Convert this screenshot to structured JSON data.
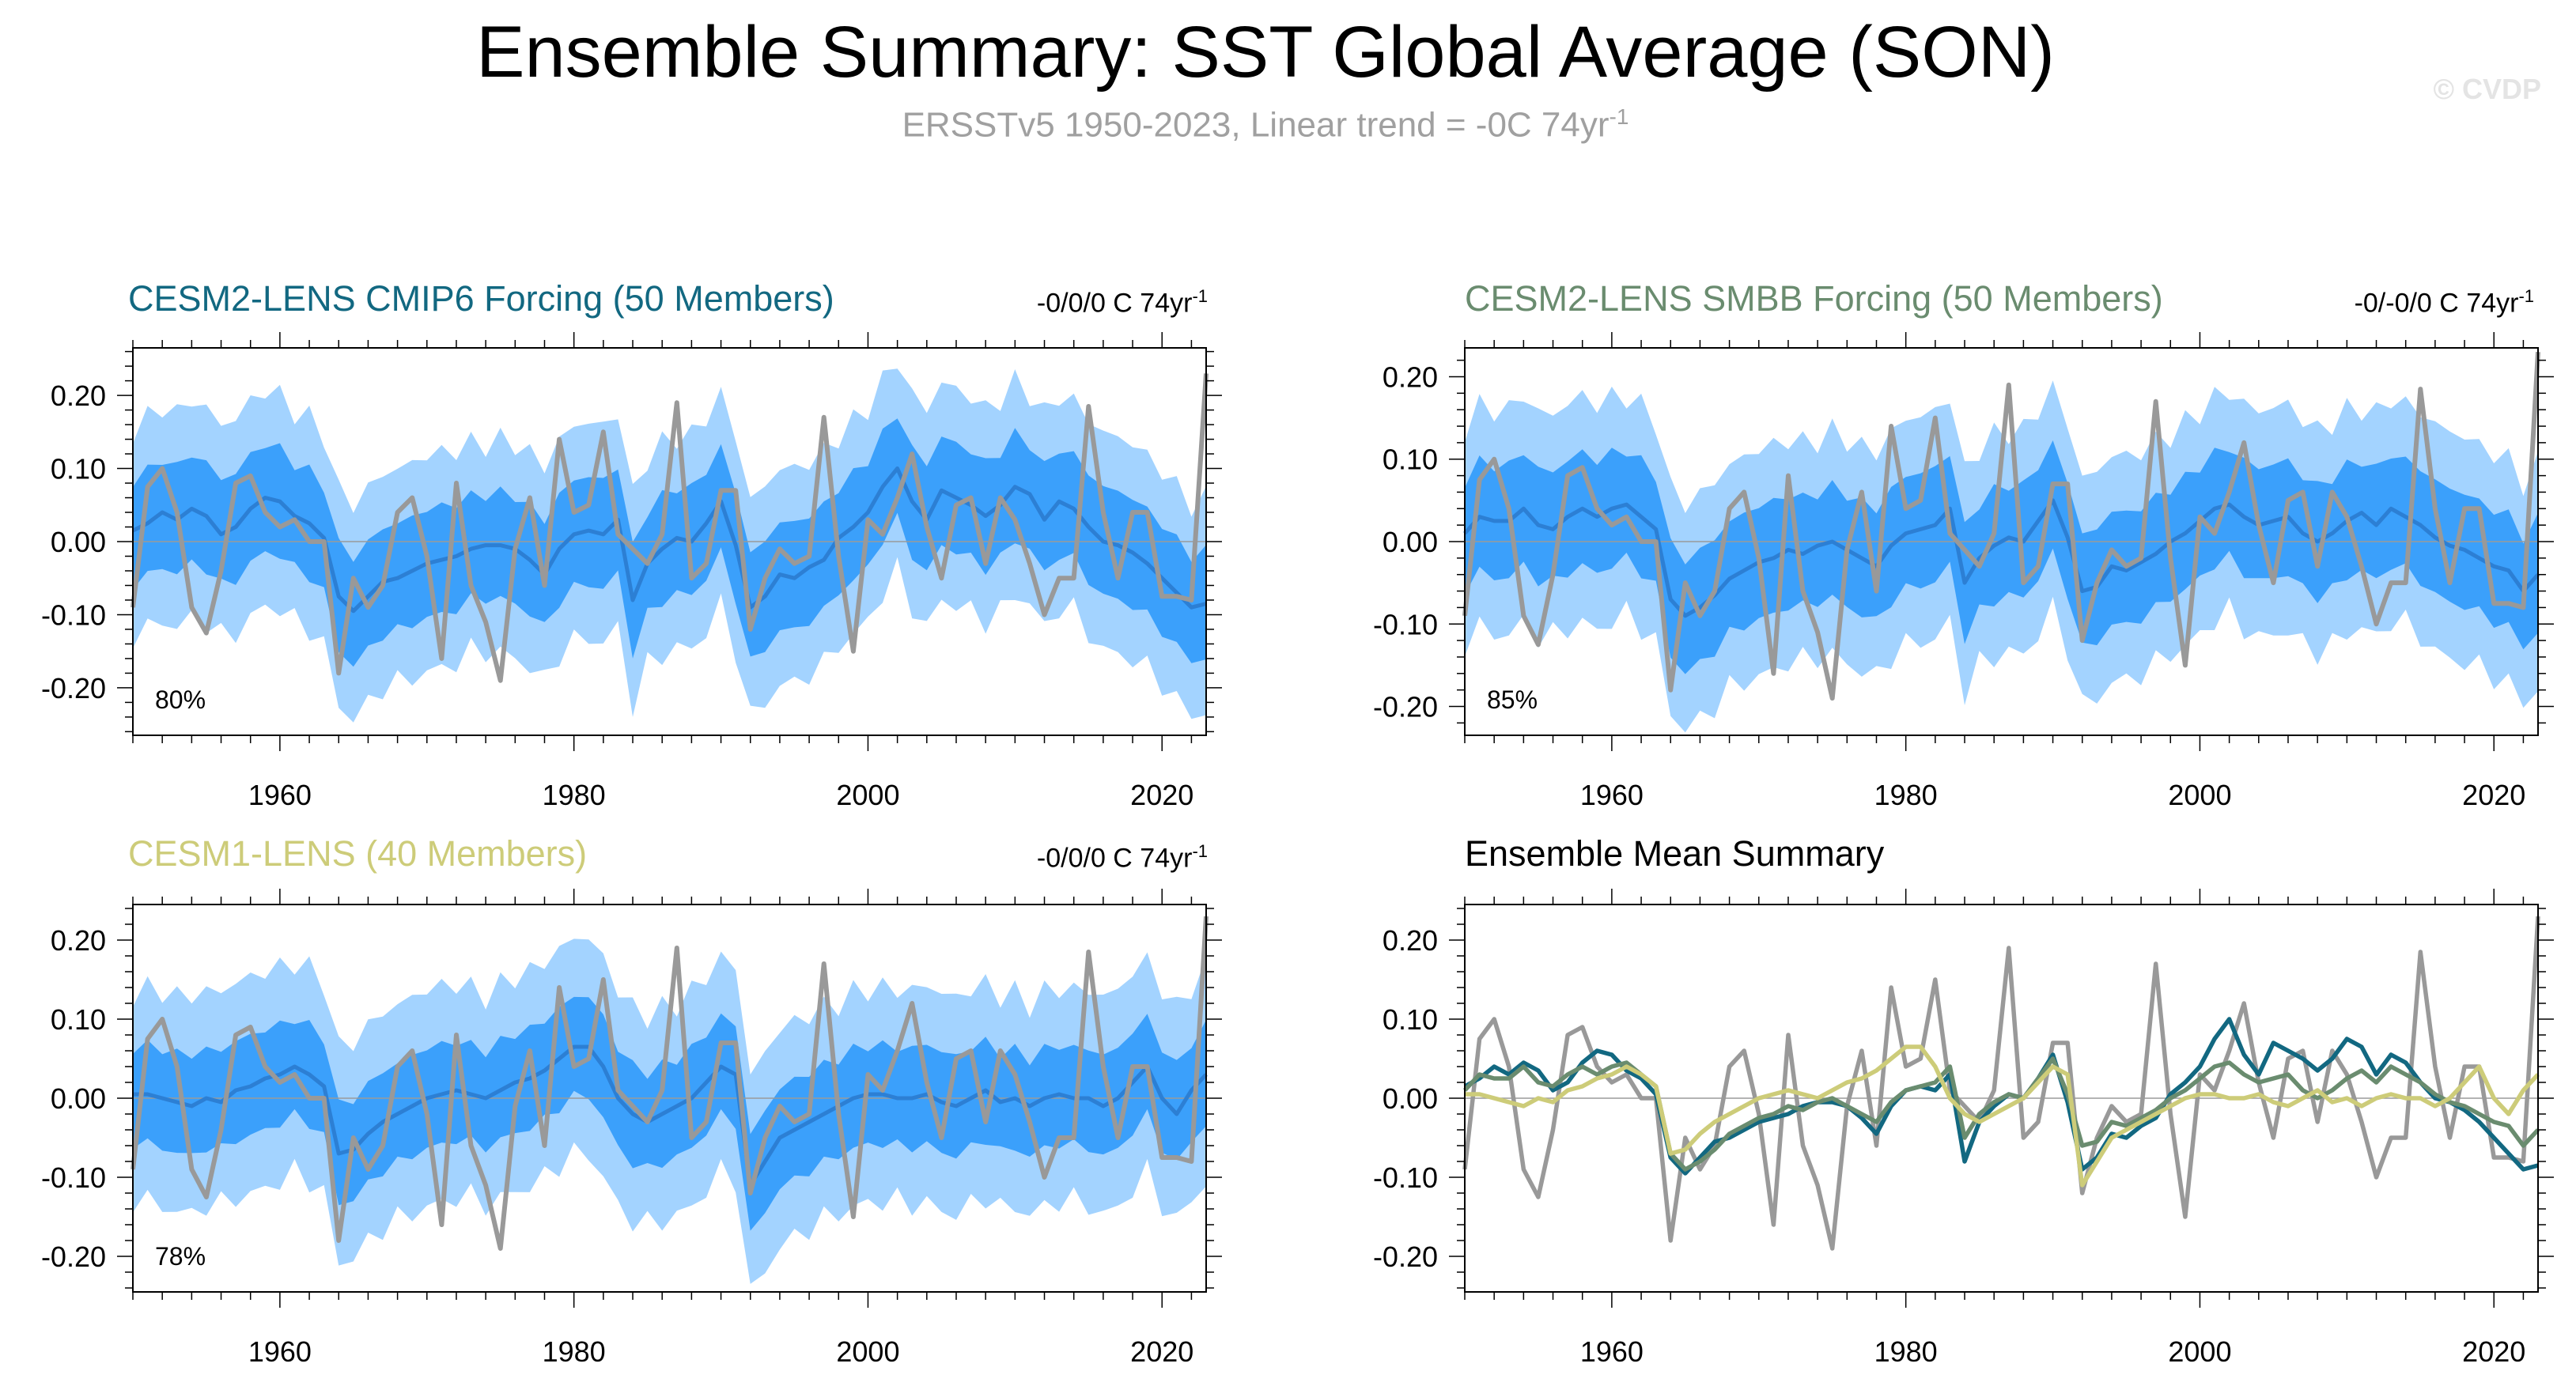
{
  "title": "Ensemble Summary: SST Global Average (SON)",
  "subtitle": {
    "prefix": "ERSSTv5 1950-2023, Linear trend = -0C 74yr",
    "exponent": "-1"
  },
  "watermark": "© CVDP",
  "colors": {
    "obs": "#999999",
    "band_outer": "#a3d3ff",
    "band_inner": "#3ba0fb",
    "ens_mean_line": "#2c7fd4",
    "cmip6": "#126881",
    "smbb": "#6a8c6f",
    "cesm1": "#cdcc79"
  },
  "panels": [
    {
      "title": "CESM2-LENS CMIP6 Forcing (50 Members)",
      "title_color": "#126881",
      "trend": "-0/0/0 C 74yr",
      "trend_exponent": "-1",
      "percent": "80%"
    },
    {
      "title": "CESM2-LENS SMBB Forcing (50 Members)",
      "title_color": "#6a8c6f",
      "trend": "-0/-0/0 C 74yr",
      "trend_exponent": "-1",
      "percent": "85%"
    },
    {
      "title": "CESM1-LENS (40 Members)",
      "title_color": "#cdcc79",
      "trend": "-0/0/0 C 74yr",
      "trend_exponent": "-1",
      "percent": "78%"
    },
    {
      "title": "Ensemble Mean Summary",
      "title_color": "#000000"
    }
  ],
  "chart_data": [
    {
      "type": "area",
      "title": "CESM2-LENS CMIP6 Forcing (50 Members)",
      "x_range": [
        1950,
        2023
      ],
      "xticks": [
        1960,
        1980,
        2000,
        2020
      ],
      "ylim": [
        -0.265,
        0.265
      ],
      "yticks": [
        -0.2,
        -0.1,
        0.0,
        0.1,
        0.2
      ],
      "ytick_labels": [
        "-0.20",
        "-0.10",
        "0.00",
        "0.10",
        "0.20"
      ],
      "series": [
        {
          "name": "ensemble mean",
          "values": [
            0.015,
            0.025,
            0.04,
            0.03,
            0.045,
            0.035,
            0.01,
            0.02,
            0.045,
            0.06,
            0.055,
            0.035,
            0.025,
            0.005,
            -0.075,
            -0.095,
            -0.075,
            -0.055,
            -0.05,
            -0.04,
            -0.03,
            -0.025,
            -0.02,
            -0.01,
            -0.005,
            -0.005,
            -0.01,
            -0.025,
            -0.045,
            -0.01,
            0.01,
            0.015,
            0.01,
            0.03,
            -0.08,
            -0.03,
            -0.01,
            0.005,
            0.0,
            0.025,
            0.055,
            -0.005,
            -0.09,
            -0.075,
            -0.045,
            -0.05,
            -0.035,
            -0.025,
            0.005,
            0.02,
            0.04,
            0.075,
            0.1,
            0.055,
            0.03,
            0.07,
            0.06,
            0.05,
            0.035,
            0.05,
            0.075,
            0.065,
            0.03,
            0.055,
            0.045,
            0.02,
            0.0,
            -0.005,
            -0.015,
            -0.03,
            -0.05,
            -0.07,
            -0.09,
            -0.085
          ]
        },
        {
          "name": "ERSSTv5 observations",
          "values": [
            -0.09,
            0.075,
            0.1,
            0.04,
            -0.09,
            -0.125,
            -0.04,
            0.08,
            0.09,
            0.04,
            0.02,
            0.03,
            0.0,
            0.0,
            -0.18,
            -0.05,
            -0.09,
            -0.06,
            0.04,
            0.06,
            -0.02,
            -0.16,
            0.08,
            -0.06,
            -0.11,
            -0.19,
            -0.01,
            0.06,
            -0.06,
            0.14,
            0.04,
            0.05,
            0.15,
            0.01,
            -0.01,
            -0.03,
            0.01,
            0.19,
            -0.05,
            -0.03,
            0.07,
            0.07,
            -0.12,
            -0.05,
            -0.01,
            -0.03,
            -0.02,
            0.17,
            -0.02,
            -0.15,
            0.03,
            0.01,
            0.06,
            0.12,
            0.02,
            -0.05,
            0.05,
            0.06,
            -0.03,
            0.06,
            0.03,
            -0.03,
            -0.1,
            -0.05,
            -0.05,
            0.185,
            0.04,
            -0.05,
            0.04,
            0.04,
            -0.075,
            -0.075,
            -0.08,
            0.23
          ]
        }
      ],
      "band_outer_halfwidth": 0.14,
      "band_inner_halfwidth": 0.07,
      "annotation": "80%",
      "trend_label": "-0/0/0 C 74yr-1"
    },
    {
      "type": "area",
      "title": "CESM2-LENS SMBB Forcing (50 Members)",
      "x_range": [
        1950,
        2023
      ],
      "xticks": [
        1960,
        1980,
        2000,
        2020
      ],
      "ylim": [
        -0.235,
        0.235
      ],
      "yticks": [
        -0.2,
        -0.1,
        0.0,
        0.1,
        0.2
      ],
      "ytick_labels": [
        "-0.20",
        "-0.10",
        "0.00",
        "0.10",
        "0.20"
      ],
      "series": [
        {
          "name": "ensemble mean",
          "values": [
            0.01,
            0.03,
            0.025,
            0.025,
            0.04,
            0.02,
            0.015,
            0.03,
            0.04,
            0.03,
            0.04,
            0.045,
            0.03,
            0.015,
            -0.07,
            -0.09,
            -0.08,
            -0.065,
            -0.045,
            -0.035,
            -0.025,
            -0.02,
            -0.01,
            -0.015,
            -0.005,
            0.0,
            -0.01,
            -0.02,
            -0.03,
            -0.005,
            0.01,
            0.015,
            0.02,
            0.04,
            -0.05,
            -0.02,
            -0.005,
            0.005,
            0.0,
            0.025,
            0.05,
            0.005,
            -0.06,
            -0.055,
            -0.03,
            -0.035,
            -0.025,
            -0.015,
            0.0,
            0.01,
            0.025,
            0.04,
            0.045,
            0.03,
            0.02,
            0.025,
            0.03,
            0.01,
            0.0,
            0.01,
            0.025,
            0.035,
            0.02,
            0.04,
            0.03,
            0.02,
            0.005,
            -0.005,
            -0.01,
            -0.02,
            -0.03,
            -0.035,
            -0.06,
            -0.04
          ]
        },
        {
          "name": "ERSSTv5 observations",
          "values": [
            -0.09,
            0.075,
            0.1,
            0.04,
            -0.09,
            -0.125,
            -0.04,
            0.08,
            0.09,
            0.04,
            0.02,
            0.03,
            0.0,
            0.0,
            -0.18,
            -0.05,
            -0.09,
            -0.06,
            0.04,
            0.06,
            -0.02,
            -0.16,
            0.08,
            -0.06,
            -0.11,
            -0.19,
            -0.01,
            0.06,
            -0.06,
            0.14,
            0.04,
            0.05,
            0.15,
            0.01,
            -0.01,
            -0.03,
            0.01,
            0.19,
            -0.05,
            -0.03,
            0.07,
            0.07,
            -0.12,
            -0.05,
            -0.01,
            -0.03,
            -0.02,
            0.17,
            -0.02,
            -0.15,
            0.03,
            0.01,
            0.06,
            0.12,
            0.02,
            -0.05,
            0.05,
            0.06,
            -0.03,
            0.06,
            0.03,
            -0.03,
            -0.1,
            -0.05,
            -0.05,
            0.185,
            0.04,
            -0.05,
            0.04,
            0.04,
            -0.075,
            -0.075,
            -0.08,
            0.23
          ]
        }
      ],
      "band_outer_halfwidth": 0.13,
      "band_inner_halfwidth": 0.065,
      "annotation": "85%",
      "trend_label": "-0/-0/0 C 74yr-1"
    },
    {
      "type": "area",
      "title": "CESM1-LENS (40 Members)",
      "x_range": [
        1950,
        2023
      ],
      "xticks": [
        1960,
        1980,
        2000,
        2020
      ],
      "ylim": [
        -0.245,
        0.245
      ],
      "yticks": [
        -0.2,
        -0.1,
        0.0,
        0.1,
        0.2
      ],
      "ytick_labels": [
        "-0.20",
        "-0.10",
        "0.00",
        "0.10",
        "0.20"
      ],
      "series": [
        {
          "name": "ensemble mean",
          "values": [
            0.005,
            0.005,
            0.0,
            -0.005,
            -0.01,
            0.0,
            -0.005,
            0.01,
            0.015,
            0.025,
            0.03,
            0.04,
            0.03,
            0.015,
            -0.07,
            -0.065,
            -0.045,
            -0.03,
            -0.02,
            -0.01,
            0.0,
            0.005,
            0.01,
            0.005,
            0.0,
            0.01,
            0.02,
            0.025,
            0.035,
            0.05,
            0.065,
            0.065,
            0.04,
            0.0,
            -0.02,
            -0.03,
            -0.02,
            -0.01,
            0.0,
            0.02,
            0.04,
            0.03,
            -0.11,
            -0.08,
            -0.05,
            -0.04,
            -0.03,
            -0.02,
            -0.01,
            0.0,
            0.005,
            0.005,
            0.0,
            0.0,
            0.005,
            -0.005,
            -0.01,
            0.0,
            0.01,
            -0.005,
            0.0,
            -0.01,
            0.0,
            0.005,
            0.0,
            0.0,
            -0.01,
            0.0,
            0.02,
            0.04,
            0.0,
            -0.02,
            0.01,
            0.03
          ]
        },
        {
          "name": "ERSSTv5 observations",
          "values": [
            -0.09,
            0.075,
            0.1,
            0.04,
            -0.09,
            -0.125,
            -0.04,
            0.08,
            0.09,
            0.04,
            0.02,
            0.03,
            0.0,
            0.0,
            -0.18,
            -0.05,
            -0.09,
            -0.06,
            0.04,
            0.06,
            -0.02,
            -0.16,
            0.08,
            -0.06,
            -0.11,
            -0.19,
            -0.01,
            0.06,
            -0.06,
            0.14,
            0.04,
            0.05,
            0.15,
            0.01,
            -0.01,
            -0.03,
            0.01,
            0.19,
            -0.05,
            -0.03,
            0.07,
            0.07,
            -0.12,
            -0.05,
            -0.01,
            -0.03,
            -0.02,
            0.17,
            -0.02,
            -0.15,
            0.03,
            0.01,
            0.06,
            0.12,
            0.02,
            -0.05,
            0.05,
            0.06,
            -0.03,
            0.06,
            0.03,
            -0.03,
            -0.1,
            -0.05,
            -0.05,
            0.185,
            0.04,
            -0.05,
            0.04,
            0.04,
            -0.075,
            -0.075,
            -0.08,
            0.23
          ]
        }
      ],
      "band_outer_halfwidth": 0.13,
      "band_inner_halfwidth": 0.06,
      "annotation": "78%",
      "trend_label": "-0/0/0 C 74yr-1"
    },
    {
      "type": "line",
      "title": "Ensemble Mean Summary",
      "x_range": [
        1950,
        2023
      ],
      "xticks": [
        1960,
        1980,
        2000,
        2020
      ],
      "ylim": [
        -0.245,
        0.245
      ],
      "yticks": [
        -0.2,
        -0.1,
        0.0,
        0.1,
        0.2
      ],
      "ytick_labels": [
        "-0.20",
        "-0.10",
        "0.00",
        "0.10",
        "0.20"
      ],
      "series": [
        {
          "name": "ERSSTv5 observations",
          "color": "#999999",
          "values": [
            -0.09,
            0.075,
            0.1,
            0.04,
            -0.09,
            -0.125,
            -0.04,
            0.08,
            0.09,
            0.04,
            0.02,
            0.03,
            0.0,
            0.0,
            -0.18,
            -0.05,
            -0.09,
            -0.06,
            0.04,
            0.06,
            -0.02,
            -0.16,
            0.08,
            -0.06,
            -0.11,
            -0.19,
            -0.01,
            0.06,
            -0.06,
            0.14,
            0.04,
            0.05,
            0.15,
            0.01,
            -0.01,
            -0.03,
            0.01,
            0.19,
            -0.05,
            -0.03,
            0.07,
            0.07,
            -0.12,
            -0.05,
            -0.01,
            -0.03,
            -0.02,
            0.17,
            -0.02,
            -0.15,
            0.03,
            0.01,
            0.06,
            0.12,
            0.02,
            -0.05,
            0.05,
            0.06,
            -0.03,
            0.06,
            0.03,
            -0.03,
            -0.1,
            -0.05,
            -0.05,
            0.185,
            0.04,
            -0.05,
            0.04,
            0.04,
            -0.075,
            -0.075,
            -0.08,
            0.23
          ]
        },
        {
          "name": "CESM2-LENS CMIP6 Forcing",
          "color": "#126881",
          "values": [
            0.015,
            0.025,
            0.04,
            0.03,
            0.045,
            0.035,
            0.01,
            0.02,
            0.045,
            0.06,
            0.055,
            0.035,
            0.025,
            0.005,
            -0.075,
            -0.095,
            -0.075,
            -0.055,
            -0.05,
            -0.04,
            -0.03,
            -0.025,
            -0.02,
            -0.01,
            -0.005,
            -0.005,
            -0.01,
            -0.025,
            -0.045,
            -0.01,
            0.01,
            0.015,
            0.01,
            0.03,
            -0.08,
            -0.03,
            -0.01,
            0.005,
            0.0,
            0.025,
            0.055,
            -0.005,
            -0.09,
            -0.075,
            -0.045,
            -0.05,
            -0.035,
            -0.025,
            0.005,
            0.02,
            0.04,
            0.075,
            0.1,
            0.055,
            0.03,
            0.07,
            0.06,
            0.05,
            0.035,
            0.05,
            0.075,
            0.065,
            0.03,
            0.055,
            0.045,
            0.02,
            0.0,
            -0.005,
            -0.015,
            -0.03,
            -0.05,
            -0.07,
            -0.09,
            -0.085
          ]
        },
        {
          "name": "CESM2-LENS SMBB Forcing",
          "color": "#6a8c6f",
          "values": [
            0.01,
            0.03,
            0.025,
            0.025,
            0.04,
            0.02,
            0.015,
            0.03,
            0.04,
            0.03,
            0.04,
            0.045,
            0.03,
            0.015,
            -0.07,
            -0.09,
            -0.08,
            -0.065,
            -0.045,
            -0.035,
            -0.025,
            -0.02,
            -0.01,
            -0.015,
            -0.005,
            0.0,
            -0.01,
            -0.02,
            -0.03,
            -0.005,
            0.01,
            0.015,
            0.02,
            0.04,
            -0.05,
            -0.02,
            -0.005,
            0.005,
            0.0,
            0.025,
            0.05,
            0.005,
            -0.06,
            -0.055,
            -0.03,
            -0.035,
            -0.025,
            -0.015,
            0.0,
            0.01,
            0.025,
            0.04,
            0.045,
            0.03,
            0.02,
            0.025,
            0.03,
            0.01,
            0.0,
            0.01,
            0.025,
            0.035,
            0.02,
            0.04,
            0.03,
            0.02,
            0.005,
            -0.005,
            -0.01,
            -0.02,
            -0.03,
            -0.035,
            -0.06,
            -0.04
          ]
        },
        {
          "name": "CESM1-LENS",
          "color": "#cdcc79",
          "values": [
            0.005,
            0.005,
            0.0,
            -0.005,
            -0.01,
            0.0,
            -0.005,
            0.01,
            0.015,
            0.025,
            0.03,
            0.04,
            0.03,
            0.015,
            -0.07,
            -0.065,
            -0.045,
            -0.03,
            -0.02,
            -0.01,
            0.0,
            0.005,
            0.01,
            0.005,
            0.0,
            0.01,
            0.02,
            0.025,
            0.035,
            0.05,
            0.065,
            0.065,
            0.04,
            0.0,
            -0.02,
            -0.03,
            -0.02,
            -0.01,
            0.0,
            0.02,
            0.04,
            0.03,
            -0.11,
            -0.08,
            -0.05,
            -0.04,
            -0.03,
            -0.02,
            -0.01,
            0.0,
            0.005,
            0.005,
            0.0,
            0.0,
            0.005,
            -0.005,
            -0.01,
            0.0,
            0.01,
            -0.005,
            0.0,
            -0.01,
            0.0,
            0.005,
            0.0,
            0.0,
            -0.01,
            0.0,
            0.02,
            0.04,
            0.0,
            -0.02,
            0.01,
            0.03
          ]
        }
      ]
    }
  ]
}
